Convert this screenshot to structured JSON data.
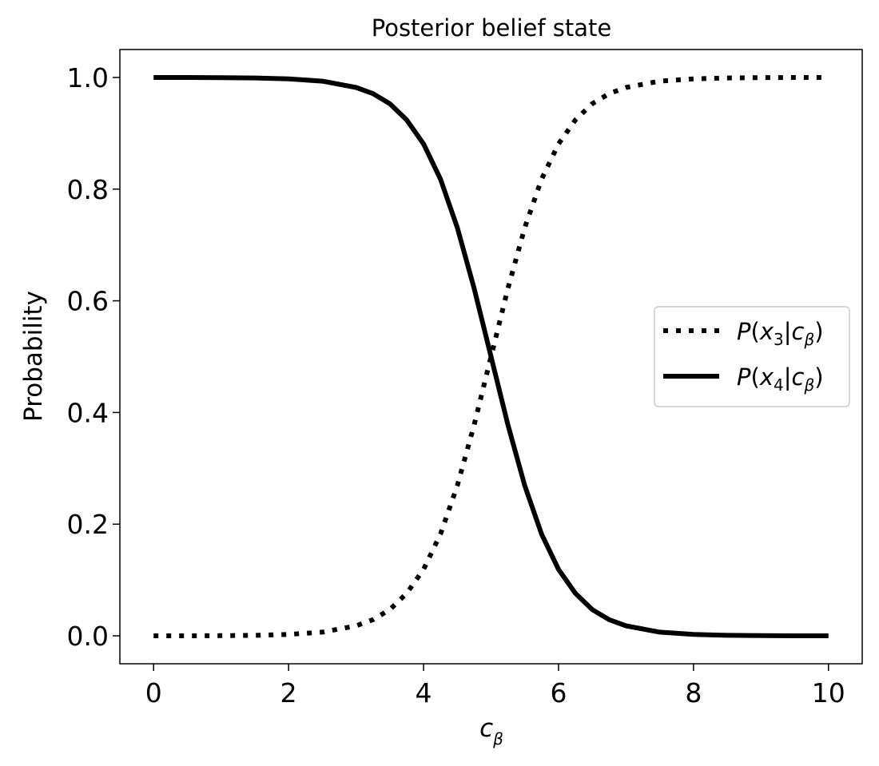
{
  "chart_data": {
    "type": "line",
    "title": "Posterior belief state",
    "xlabel": {
      "base": "c",
      "sub": "β"
    },
    "ylabel": "Probability",
    "xlim": [
      -0.5,
      10.5
    ],
    "ylim": [
      -0.05,
      1.05
    ],
    "xticks": [
      0,
      2,
      4,
      6,
      8,
      10
    ],
    "xtick_labels": [
      "0",
      "2",
      "4",
      "6",
      "8",
      "10"
    ],
    "yticks": [
      0.0,
      0.2,
      0.4,
      0.6,
      0.8,
      1.0
    ],
    "ytick_labels": [
      "0.0",
      "0.2",
      "0.4",
      "0.6",
      "0.8",
      "1.0"
    ],
    "grid": false,
    "legend_position": "center-right",
    "x": [
      0,
      0.5,
      1,
      1.5,
      2,
      2.5,
      3,
      3.25,
      3.5,
      3.75,
      4,
      4.25,
      4.5,
      4.75,
      5,
      5.25,
      5.5,
      5.75,
      6,
      6.25,
      6.5,
      6.75,
      7,
      7.5,
      8,
      8.5,
      9,
      9.5,
      10
    ],
    "series": [
      {
        "name": {
          "func": "P",
          "var": "x",
          "var_sub": "3",
          "cond": "c",
          "cond_sub": "β"
        },
        "style": "dotted",
        "color": "#000000",
        "values": [
          0.0,
          0.0001,
          0.0003,
          0.0009,
          0.0025,
          0.0067,
          0.018,
          0.029,
          0.047,
          0.076,
          0.119,
          0.182,
          0.269,
          0.378,
          0.5,
          0.622,
          0.731,
          0.818,
          0.881,
          0.924,
          0.953,
          0.971,
          0.982,
          0.9933,
          0.9975,
          0.9991,
          0.9997,
          0.9999,
          1.0
        ]
      },
      {
        "name": {
          "func": "P",
          "var": "x",
          "var_sub": "4",
          "cond": "c",
          "cond_sub": "β"
        },
        "style": "solid",
        "color": "#000000",
        "values": [
          1.0,
          0.9999,
          0.9997,
          0.9991,
          0.9975,
          0.9933,
          0.982,
          0.971,
          0.953,
          0.924,
          0.881,
          0.818,
          0.731,
          0.622,
          0.5,
          0.378,
          0.269,
          0.182,
          0.119,
          0.076,
          0.047,
          0.029,
          0.018,
          0.0067,
          0.0025,
          0.0009,
          0.0003,
          0.0001,
          0.0
        ]
      }
    ]
  }
}
